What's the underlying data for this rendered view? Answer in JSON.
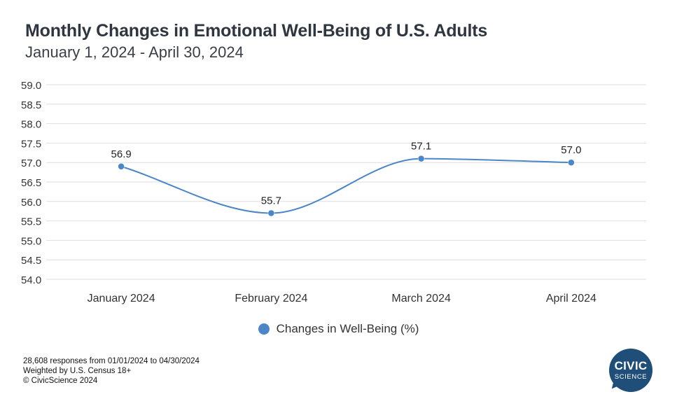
{
  "header": {
    "title": "Monthly Changes in Emotional Well-Being of U.S. Adults",
    "subtitle": "January 1, 2024 - April 30, 2024"
  },
  "chart_data": {
    "type": "line",
    "categories": [
      "January 2024",
      "February 2024",
      "March 2024",
      "April 2024"
    ],
    "series": [
      {
        "name": "Changes in Well-Being (%)",
        "values": [
          56.9,
          55.7,
          57.1,
          57.0
        ],
        "data_labels": [
          "56.9",
          "55.7",
          "57.1",
          "57.0"
        ]
      }
    ],
    "ylim": [
      54.0,
      59.0
    ],
    "yticks": [
      "54.0",
      "54.5",
      "55.0",
      "55.5",
      "56.0",
      "56.5",
      "57.0",
      "57.5",
      "58.0",
      "58.5",
      "59.0"
    ],
    "grid": true,
    "smooth": true,
    "legend_position": "bottom",
    "colors": {
      "line": "#4a86c8",
      "grid": "#dedede"
    }
  },
  "legend": {
    "label": "Changes in Well-Being (%)"
  },
  "footnotes": {
    "line1": "28,608 responses from 01/01/2024 to 04/30/2024",
    "line2": "Weighted by U.S. Census 18+",
    "line3": "© CivicScience 2024"
  },
  "logo": {
    "civic": "CIVIC",
    "science": "SCIENCE"
  }
}
